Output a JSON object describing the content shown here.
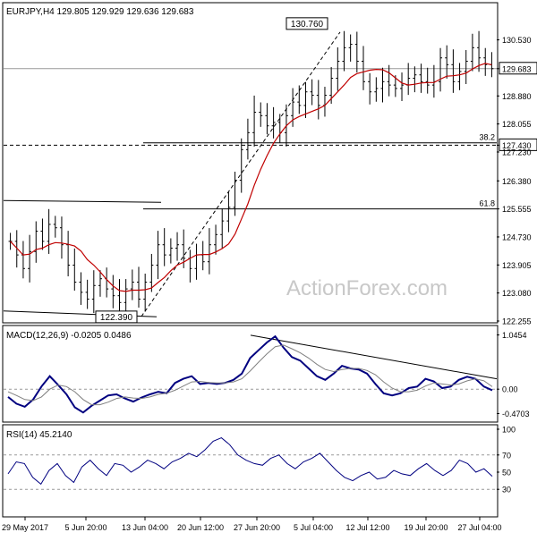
{
  "colors": {
    "price_bar": "#000000",
    "ma_line": "#c00000",
    "macd_line": "#000080",
    "signal_line": "#808080",
    "rsi_line": "#000080",
    "level_line": "#000000",
    "grid_dash": "#999999",
    "watermark": "#c8c8c8",
    "panel_border": "#000000"
  },
  "watermark": "ActionForex.com",
  "chart_data": [
    {
      "type": "ohlc",
      "title": "EURJPY,H4  129.805 129.929 129.636 129.683",
      "symbol": "EURJPY",
      "timeframe": "H4",
      "ohlc_last": {
        "open": 129.805,
        "high": 129.929,
        "low": 129.636,
        "close": 129.683
      },
      "ylim": [
        122.255,
        131.23
      ],
      "y_ticks": [
        "130.530",
        "129.683",
        "128.880",
        "128.055",
        "127.430",
        "127.230",
        "126.380",
        "125.555",
        "124.730",
        "123.905",
        "123.080",
        "122.255"
      ],
      "price_labels_boxed": [
        "129.683",
        "127.430"
      ],
      "x_ticks": [
        "29 May 2017",
        "5 Jun 20:00",
        "13 Jun 04:00",
        "20 Jun 12:00",
        "27 Jun 20:00",
        "5 Jul 04:00",
        "12 Jul 12:00",
        "19 Jul 20:00",
        "27 Jul 04:00"
      ],
      "annotations": [
        {
          "label": "130.760",
          "value": 130.76,
          "kind": "high"
        },
        {
          "label": "122.390",
          "value": 122.39,
          "kind": "low"
        }
      ],
      "fib_levels": [
        {
          "label": "38.2",
          "value": 127.5
        },
        {
          "label": "61.8",
          "value": 125.555
        }
      ],
      "levels": [
        {
          "name": "current",
          "value": 129.683
        },
        {
          "name": "support",
          "value": 127.43
        }
      ],
      "close_series": [
        124.6,
        124.2,
        123.8,
        124.3,
        124.9,
        124.6,
        125.1,
        125.0,
        124.5,
        123.9,
        123.4,
        123.1,
        122.9,
        123.3,
        123.5,
        123.2,
        123.0,
        122.8,
        123.2,
        123.4,
        122.9,
        123.4,
        123.9,
        124.5,
        124.2,
        124.4,
        124.5,
        124.1,
        123.8,
        124.2,
        124.0,
        124.5,
        124.8,
        125.2,
        125.6,
        126.4,
        127.3,
        127.8,
        128.4,
        128.3,
        128.0,
        128.1,
        127.8,
        128.3,
        128.7,
        128.6,
        129.0,
        128.9,
        128.6,
        128.9,
        129.4,
        129.9,
        130.3,
        130.4,
        129.9,
        129.3,
        129.0,
        129.1,
        129.3,
        129.2,
        129.1,
        129.2,
        129.4,
        129.5,
        129.3,
        129.2,
        129.3,
        130.0,
        129.8,
        129.3,
        129.6,
        129.9,
        130.3,
        130.0,
        129.8,
        129.683
      ],
      "ma_period": 20
    },
    {
      "type": "line",
      "title": "MACD(12,26,9) -0.0205 0.0486",
      "params": "12,26,9",
      "macd_last": -0.0205,
      "signal_last": 0.0486,
      "ylim": [
        -0.6,
        1.09
      ],
      "y_ticks": [
        "1.0454",
        "0.00",
        "-0.4703"
      ],
      "series": [
        {
          "name": "MACD",
          "values": [
            -0.15,
            -0.28,
            -0.34,
            -0.2,
            0.05,
            0.25,
            0.08,
            -0.1,
            -0.35,
            -0.45,
            -0.32,
            -0.22,
            -0.12,
            -0.1,
            -0.18,
            -0.24,
            -0.16,
            -0.1,
            -0.05,
            -0.08,
            0.12,
            0.2,
            0.25,
            0.1,
            0.12,
            0.1,
            0.12,
            0.18,
            0.3,
            0.6,
            0.75,
            0.9,
            1.02,
            0.8,
            0.62,
            0.55,
            0.4,
            0.25,
            0.18,
            0.3,
            0.45,
            0.4,
            0.38,
            0.3,
            0.1,
            -0.08,
            -0.12,
            -0.08,
            0.02,
            0.05,
            0.2,
            0.15,
            0.02,
            0.05,
            0.18,
            0.24,
            0.2,
            0.05,
            -0.02
          ]
        },
        {
          "name": "Signal",
          "values": [
            -0.05,
            -0.12,
            -0.2,
            -0.22,
            -0.15,
            0.0,
            0.08,
            0.05,
            -0.05,
            -0.2,
            -0.3,
            -0.3,
            -0.25,
            -0.18,
            -0.15,
            -0.17,
            -0.18,
            -0.15,
            -0.1,
            -0.08,
            -0.02,
            0.06,
            0.14,
            0.15,
            0.13,
            0.12,
            0.12,
            0.14,
            0.2,
            0.35,
            0.52,
            0.68,
            0.82,
            0.85,
            0.78,
            0.7,
            0.6,
            0.48,
            0.38,
            0.34,
            0.38,
            0.4,
            0.4,
            0.36,
            0.28,
            0.14,
            0.02,
            -0.05,
            -0.05,
            -0.02,
            0.06,
            0.12,
            0.1,
            0.08,
            0.1,
            0.16,
            0.2,
            0.16,
            0.0486
          ]
        }
      ]
    },
    {
      "type": "line",
      "title": "RSI(14) 45.2140",
      "period": 14,
      "last": 45.214,
      "ylim": [
        0,
        100
      ],
      "y_ticks": [
        "100",
        "70",
        "50",
        "30"
      ],
      "levels": [
        70,
        30
      ],
      "series": [
        {
          "name": "RSI",
          "values": [
            48,
            62,
            60,
            44,
            36,
            52,
            60,
            46,
            38,
            56,
            64,
            54,
            46,
            60,
            58,
            50,
            56,
            64,
            60,
            54,
            62,
            66,
            72,
            68,
            76,
            86,
            90,
            82,
            70,
            64,
            60,
            58,
            66,
            70,
            60,
            54,
            62,
            66,
            72,
            62,
            52,
            44,
            40,
            46,
            50,
            42,
            44,
            52,
            48,
            46,
            54,
            60,
            52,
            46,
            52,
            64,
            60,
            50,
            54,
            45.2
          ]
        }
      ]
    }
  ]
}
